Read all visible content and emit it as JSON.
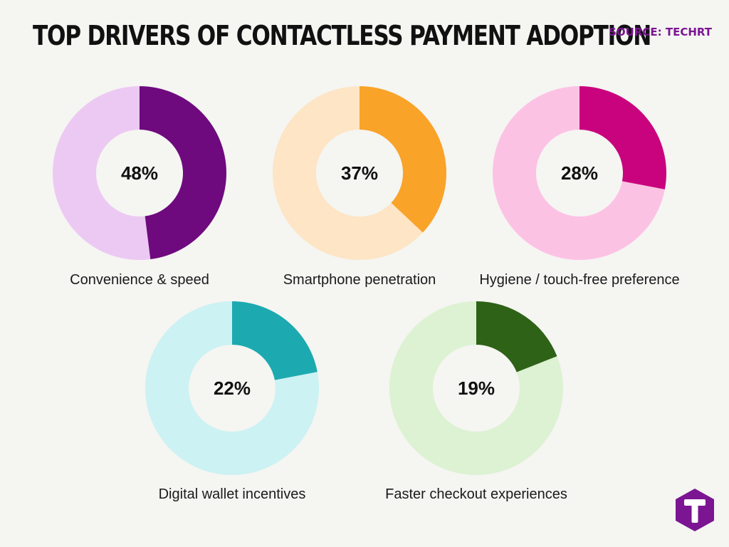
{
  "header": {
    "title": "TOP DRIVERS OF CONTACTLESS PAYMENT ADOPTION",
    "source": "SOURCE: TECHRT"
  },
  "logo": {
    "icon": "t-hexagon-logo-icon",
    "color": "#7b1592"
  },
  "chart_data": [
    {
      "type": "pie",
      "label": "Convenience & speed",
      "value": 48,
      "value_label": "48%",
      "colors": {
        "value": "#6e0a7e",
        "rest": "#ecc9f2"
      }
    },
    {
      "type": "pie",
      "label": "Smartphone penetration",
      "value": 37,
      "value_label": "37%",
      "colors": {
        "value": "#f9a329",
        "rest": "#fde5c5"
      }
    },
    {
      "type": "pie",
      "label": "Hygiene / touch-free preference",
      "value": 28,
      "value_label": "28%",
      "colors": {
        "value": "#c9037d",
        "rest": "#fcc2e4"
      }
    },
    {
      "type": "pie",
      "label": "Digital wallet incentives",
      "value": 22,
      "value_label": "22%",
      "colors": {
        "value": "#1caab0",
        "rest": "#ccf2f3"
      }
    },
    {
      "type": "pie",
      "label": "Faster checkout experiences",
      "value": 19,
      "value_label": "19%",
      "colors": {
        "value": "#2e6217",
        "rest": "#dcf2d2"
      }
    }
  ]
}
